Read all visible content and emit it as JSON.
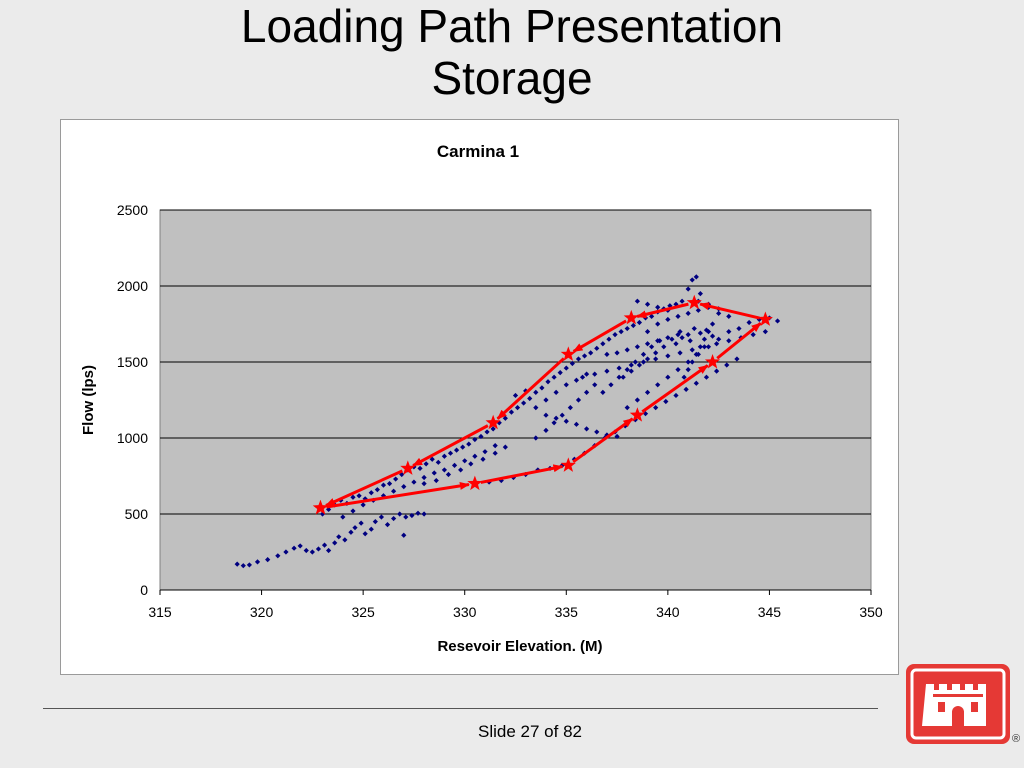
{
  "slide": {
    "title_line1": "Loading Path Presentation",
    "title_line2": "Storage",
    "footer": "Slide 27 of 82",
    "registered_mark": "®"
  },
  "colors": {
    "background": "#ebebeb",
    "plot_area": "#c0c0c0",
    "points": "#000080",
    "path": "#ff0000",
    "logo": "#e53935"
  },
  "chart_data": {
    "type": "scatter",
    "title": "Carmina 1",
    "xlabel": "Resevoir Elevation. (M)",
    "ylabel": "Flow (lps)",
    "xlim": [
      315,
      350
    ],
    "ylim": [
      0,
      2500
    ],
    "x_ticks": [
      "315",
      "320",
      "325",
      "330",
      "335",
      "340",
      "345",
      "350"
    ],
    "y_ticks": [
      "0",
      "500",
      "1000",
      "1500",
      "2000",
      "2500"
    ],
    "grid": "horizontal",
    "legend": "none",
    "series": [
      {
        "kind": "points",
        "points": [
          [
            318.8,
            170
          ],
          [
            319.1,
            160
          ],
          [
            319.4,
            165
          ],
          [
            319.8,
            185
          ],
          [
            320.3,
            200
          ],
          [
            320.8,
            225
          ],
          [
            321.2,
            250
          ],
          [
            321.6,
            275
          ],
          [
            321.9,
            290
          ],
          [
            322.2,
            260
          ],
          [
            322.5,
            250
          ],
          [
            322.8,
            270
          ],
          [
            323.1,
            295
          ],
          [
            323.3,
            260
          ],
          [
            323.6,
            310
          ],
          [
            323.8,
            350
          ],
          [
            324.1,
            330
          ],
          [
            324.4,
            380
          ],
          [
            324.6,
            410
          ],
          [
            324.9,
            440
          ],
          [
            325.1,
            370
          ],
          [
            325.4,
            400
          ],
          [
            325.6,
            450
          ],
          [
            325.9,
            480
          ],
          [
            326.2,
            430
          ],
          [
            326.5,
            470
          ],
          [
            326.8,
            500
          ],
          [
            327.1,
            480
          ],
          [
            327.4,
            490
          ],
          [
            327.7,
            505
          ],
          [
            328.0,
            500
          ],
          [
            327.0,
            360
          ],
          [
            323.0,
            500
          ],
          [
            323.3,
            530
          ],
          [
            323.6,
            560
          ],
          [
            323.9,
            590
          ],
          [
            324.2,
            570
          ],
          [
            324.5,
            610
          ],
          [
            324.8,
            620
          ],
          [
            325.1,
            600
          ],
          [
            325.4,
            640
          ],
          [
            325.7,
            660
          ],
          [
            326.0,
            690
          ],
          [
            326.3,
            700
          ],
          [
            326.6,
            730
          ],
          [
            326.9,
            760
          ],
          [
            327.2,
            790
          ],
          [
            327.5,
            810
          ],
          [
            327.8,
            800
          ],
          [
            328.1,
            830
          ],
          [
            328.4,
            860
          ],
          [
            328.7,
            840
          ],
          [
            329.0,
            880
          ],
          [
            329.3,
            900
          ],
          [
            329.6,
            920
          ],
          [
            329.9,
            940
          ],
          [
            330.2,
            960
          ],
          [
            330.5,
            990
          ],
          [
            330.8,
            1010
          ],
          [
            331.1,
            1040
          ],
          [
            331.4,
            1060
          ],
          [
            331.7,
            1100
          ],
          [
            332.0,
            1130
          ],
          [
            332.3,
            1170
          ],
          [
            332.6,
            1200
          ],
          [
            332.9,
            1230
          ],
          [
            333.2,
            1260
          ],
          [
            333.5,
            1300
          ],
          [
            333.8,
            1330
          ],
          [
            334.1,
            1370
          ],
          [
            334.4,
            1400
          ],
          [
            334.7,
            1430
          ],
          [
            335.0,
            1460
          ],
          [
            335.3,
            1490
          ],
          [
            335.6,
            1520
          ],
          [
            335.9,
            1540
          ],
          [
            336.2,
            1560
          ],
          [
            336.5,
            1590
          ],
          [
            336.8,
            1620
          ],
          [
            337.1,
            1650
          ],
          [
            337.4,
            1680
          ],
          [
            337.7,
            1700
          ],
          [
            338.0,
            1720
          ],
          [
            338.3,
            1740
          ],
          [
            338.6,
            1760
          ],
          [
            338.9,
            1790
          ],
          [
            339.2,
            1800
          ],
          [
            339.5,
            1830
          ],
          [
            339.8,
            1850
          ],
          [
            340.1,
            1870
          ],
          [
            340.4,
            1880
          ],
          [
            340.7,
            1900
          ],
          [
            341.0,
            1980
          ],
          [
            341.2,
            2040
          ],
          [
            341.4,
            2060
          ],
          [
            341.6,
            1950
          ],
          [
            328.0,
            700
          ],
          [
            328.6,
            720
          ],
          [
            329.2,
            760
          ],
          [
            329.8,
            790
          ],
          [
            330.3,
            830
          ],
          [
            330.9,
            860
          ],
          [
            331.5,
            900
          ],
          [
            332.0,
            940
          ],
          [
            331.2,
            710
          ],
          [
            331.8,
            720
          ],
          [
            332.4,
            740
          ],
          [
            333.0,
            760
          ],
          [
            333.6,
            790
          ],
          [
            334.2,
            800
          ],
          [
            334.8,
            820
          ],
          [
            335.4,
            860
          ],
          [
            335.9,
            900
          ],
          [
            336.4,
            950
          ],
          [
            336.9,
            1000
          ],
          [
            337.4,
            1040
          ],
          [
            337.9,
            1080
          ],
          [
            338.4,
            1120
          ],
          [
            338.9,
            1160
          ],
          [
            339.4,
            1200
          ],
          [
            339.9,
            1240
          ],
          [
            340.4,
            1280
          ],
          [
            340.9,
            1320
          ],
          [
            341.4,
            1360
          ],
          [
            341.9,
            1400
          ],
          [
            342.4,
            1440
          ],
          [
            342.9,
            1480
          ],
          [
            343.4,
            1520
          ],
          [
            333.5,
            1000
          ],
          [
            334.0,
            1050
          ],
          [
            334.4,
            1100
          ],
          [
            334.8,
            1150
          ],
          [
            335.2,
            1200
          ],
          [
            335.6,
            1250
          ],
          [
            336.0,
            1300
          ],
          [
            336.4,
            1350
          ],
          [
            334.0,
            1150
          ],
          [
            334.5,
            1130
          ],
          [
            335.0,
            1110
          ],
          [
            335.5,
            1090
          ],
          [
            336.0,
            1060
          ],
          [
            336.5,
            1040
          ],
          [
            337.0,
            1020
          ],
          [
            337.5,
            1010
          ],
          [
            336.8,
            1300
          ],
          [
            337.2,
            1350
          ],
          [
            337.6,
            1400
          ],
          [
            338.0,
            1450
          ],
          [
            338.4,
            1500
          ],
          [
            338.8,
            1550
          ],
          [
            339.2,
            1600
          ],
          [
            339.6,
            1640
          ],
          [
            338.0,
            1200
          ],
          [
            338.5,
            1250
          ],
          [
            339.0,
            1300
          ],
          [
            339.5,
            1350
          ],
          [
            340.0,
            1400
          ],
          [
            340.5,
            1450
          ],
          [
            341.0,
            1500
          ],
          [
            341.5,
            1550
          ],
          [
            342.0,
            1600
          ],
          [
            342.5,
            1650
          ],
          [
            343.0,
            1700
          ],
          [
            343.5,
            1720
          ],
          [
            344.0,
            1760
          ],
          [
            344.5,
            1780
          ],
          [
            345.0,
            1790
          ],
          [
            345.4,
            1770
          ],
          [
            344.8,
            1700
          ],
          [
            344.2,
            1680
          ],
          [
            343.6,
            1660
          ],
          [
            343.0,
            1640
          ],
          [
            342.4,
            1620
          ],
          [
            341.8,
            1600
          ],
          [
            341.2,
            1580
          ],
          [
            340.6,
            1560
          ],
          [
            340.0,
            1540
          ],
          [
            339.4,
            1520
          ],
          [
            338.8,
            1500
          ],
          [
            338.2,
            1480
          ],
          [
            337.6,
            1460
          ],
          [
            337.0,
            1440
          ],
          [
            336.4,
            1420
          ],
          [
            335.8,
            1400
          ],
          [
            339.0,
            1700
          ],
          [
            339.5,
            1750
          ],
          [
            340.0,
            1780
          ],
          [
            340.5,
            1800
          ],
          [
            341.0,
            1820
          ],
          [
            341.5,
            1840
          ],
          [
            342.0,
            1860
          ],
          [
            342.5,
            1850
          ],
          [
            342.2,
            1750
          ],
          [
            342.0,
            1700
          ],
          [
            341.8,
            1650
          ],
          [
            341.6,
            1600
          ],
          [
            341.4,
            1550
          ],
          [
            341.2,
            1500
          ],
          [
            341.0,
            1450
          ],
          [
            340.8,
            1400
          ],
          [
            340.6,
            1700
          ],
          [
            340.2,
            1650
          ],
          [
            339.8,
            1600
          ],
          [
            339.4,
            1560
          ],
          [
            339.0,
            1520
          ],
          [
            338.6,
            1480
          ],
          [
            338.2,
            1440
          ],
          [
            337.8,
            1400
          ],
          [
            341.0,
            1680
          ],
          [
            341.3,
            1720
          ],
          [
            341.6,
            1690
          ],
          [
            341.9,
            1710
          ],
          [
            342.2,
            1670
          ],
          [
            340.4,
            1620
          ],
          [
            340.7,
            1660
          ],
          [
            341.1,
            1640
          ],
          [
            337.0,
            1550
          ],
          [
            337.5,
            1560
          ],
          [
            338.0,
            1580
          ],
          [
            338.5,
            1600
          ],
          [
            339.0,
            1620
          ],
          [
            339.5,
            1640
          ],
          [
            340.0,
            1660
          ],
          [
            340.5,
            1680
          ],
          [
            324.0,
            480
          ],
          [
            324.5,
            520
          ],
          [
            325.0,
            560
          ],
          [
            325.5,
            590
          ],
          [
            326.0,
            620
          ],
          [
            326.5,
            650
          ],
          [
            327.0,
            680
          ],
          [
            327.5,
            710
          ],
          [
            328.0,
            740
          ],
          [
            328.5,
            770
          ],
          [
            329.0,
            790
          ],
          [
            329.5,
            820
          ],
          [
            330.0,
            850
          ],
          [
            330.5,
            880
          ],
          [
            331.0,
            910
          ],
          [
            331.5,
            950
          ],
          [
            332.5,
            1280
          ],
          [
            333.0,
            1310
          ],
          [
            333.5,
            1200
          ],
          [
            334.0,
            1250
          ],
          [
            334.5,
            1300
          ],
          [
            335.0,
            1350
          ],
          [
            335.5,
            1380
          ],
          [
            336.0,
            1420
          ],
          [
            338.5,
            1900
          ],
          [
            339.0,
            1880
          ],
          [
            339.5,
            1860
          ],
          [
            340.0,
            1840
          ],
          [
            341.5,
            1900
          ],
          [
            342.0,
            1880
          ],
          [
            342.5,
            1820
          ],
          [
            343.0,
            1800
          ]
        ]
      },
      {
        "kind": "path",
        "stars": [
          [
            322.9,
            540
          ],
          [
            330.5,
            700
          ],
          [
            335.1,
            820
          ],
          [
            338.5,
            1150
          ],
          [
            342.2,
            1500
          ],
          [
            344.8,
            1780
          ],
          [
            341.3,
            1890
          ],
          [
            338.2,
            1790
          ],
          [
            335.1,
            1550
          ],
          [
            331.4,
            1100
          ],
          [
            327.2,
            800
          ],
          [
            322.9,
            540
          ]
        ]
      }
    ]
  }
}
